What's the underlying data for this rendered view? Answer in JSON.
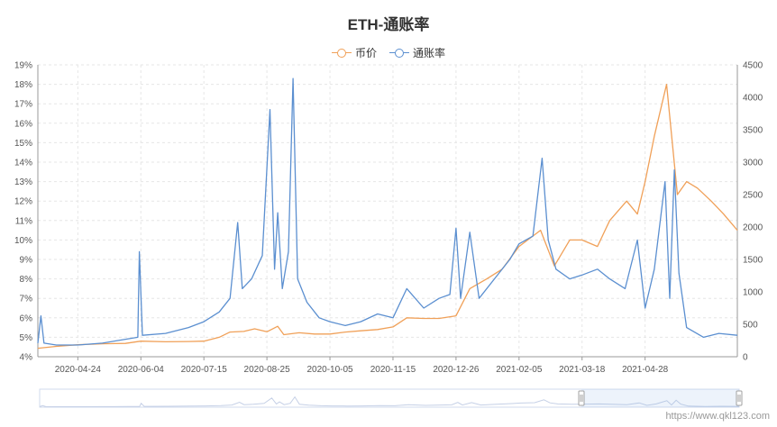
{
  "title": "ETH-通账率",
  "watermark": "https://www.qkl123.com",
  "colors": {
    "price": "#f0a058",
    "inflation": "#5b8fd0",
    "grid": "#e6e6e6",
    "axis": "#999999"
  },
  "legend": [
    {
      "label": "币价",
      "color": "#f0a058"
    },
    {
      "label": "通账率",
      "color": "#5b8fd0"
    }
  ],
  "chart_data": {
    "type": "line",
    "title": "ETH-通账率",
    "legend_position": "top-center",
    "grid": true,
    "x_ticks": [
      "2020-04-24",
      "2020-06-04",
      "2020-07-15",
      "2020-08-25",
      "2020-10-05",
      "2020-11-15",
      "2020-12-26",
      "2021-02-05",
      "2021-03-18",
      "2021-04-28"
    ],
    "x_range": [
      "2020-03-29",
      "2021-06-27"
    ],
    "y_left": {
      "unit": "%",
      "min": 4,
      "max": 19,
      "ticks": [
        "4%",
        "5%",
        "6%",
        "7%",
        "8%",
        "9%",
        "10%",
        "11%",
        "12%",
        "13%",
        "14%",
        "15%",
        "16%",
        "17%",
        "18%",
        "19%"
      ]
    },
    "y_right": {
      "min": 0,
      "max": 4500,
      "ticks": [
        "0",
        "500",
        "1000",
        "1500",
        "2000",
        "2500",
        "3000",
        "3500",
        "4000",
        "4500"
      ]
    },
    "series": [
      {
        "name": "币价",
        "axis": "right",
        "points": [
          [
            "2020-03-29",
            130
          ],
          [
            "2020-04-10",
            160
          ],
          [
            "2020-04-24",
            185
          ],
          [
            "2020-05-10",
            200
          ],
          [
            "2020-05-25",
            205
          ],
          [
            "2020-06-04",
            240
          ],
          [
            "2020-06-20",
            230
          ],
          [
            "2020-07-05",
            235
          ],
          [
            "2020-07-15",
            240
          ],
          [
            "2020-07-25",
            300
          ],
          [
            "2020-08-01",
            380
          ],
          [
            "2020-08-10",
            390
          ],
          [
            "2020-08-17",
            430
          ],
          [
            "2020-08-25",
            385
          ],
          [
            "2020-09-01",
            470
          ],
          [
            "2020-09-05",
            340
          ],
          [
            "2020-09-15",
            370
          ],
          [
            "2020-09-25",
            350
          ],
          [
            "2020-10-05",
            350
          ],
          [
            "2020-10-15",
            380
          ],
          [
            "2020-10-25",
            400
          ],
          [
            "2020-11-05",
            420
          ],
          [
            "2020-11-15",
            460
          ],
          [
            "2020-11-24",
            600
          ],
          [
            "2020-12-05",
            590
          ],
          [
            "2020-12-15",
            590
          ],
          [
            "2020-12-26",
            630
          ],
          [
            "2021-01-04",
            1050
          ],
          [
            "2021-01-15",
            1200
          ],
          [
            "2021-01-25",
            1350
          ],
          [
            "2021-02-05",
            1700
          ],
          [
            "2021-02-19",
            1950
          ],
          [
            "2021-02-28",
            1400
          ],
          [
            "2021-03-10",
            1800
          ],
          [
            "2021-03-18",
            1800
          ],
          [
            "2021-03-28",
            1700
          ],
          [
            "2021-04-05",
            2100
          ],
          [
            "2021-04-16",
            2400
          ],
          [
            "2021-04-23",
            2200
          ],
          [
            "2021-04-28",
            2700
          ],
          [
            "2021-05-04",
            3400
          ],
          [
            "2021-05-12",
            4200
          ],
          [
            "2021-05-19",
            2500
          ],
          [
            "2021-05-25",
            2700
          ],
          [
            "2021-06-01",
            2600
          ],
          [
            "2021-06-10",
            2400
          ],
          [
            "2021-06-18",
            2200
          ],
          [
            "2021-06-27",
            1950
          ]
        ]
      },
      {
        "name": "通账率",
        "axis": "left",
        "points": [
          [
            "2020-03-29",
            4.7
          ],
          [
            "2020-03-31",
            6.1
          ],
          [
            "2020-04-02",
            4.7
          ],
          [
            "2020-04-10",
            4.6
          ],
          [
            "2020-04-24",
            4.6
          ],
          [
            "2020-05-10",
            4.7
          ],
          [
            "2020-05-25",
            4.9
          ],
          [
            "2020-06-02",
            5.0
          ],
          [
            "2020-06-03",
            9.4
          ],
          [
            "2020-06-05",
            5.1
          ],
          [
            "2020-06-20",
            5.2
          ],
          [
            "2020-07-05",
            5.5
          ],
          [
            "2020-07-15",
            5.8
          ],
          [
            "2020-07-25",
            6.3
          ],
          [
            "2020-08-01",
            7.0
          ],
          [
            "2020-08-06",
            10.9
          ],
          [
            "2020-08-09",
            7.5
          ],
          [
            "2020-08-15",
            8.0
          ],
          [
            "2020-08-22",
            9.2
          ],
          [
            "2020-08-27",
            16.7
          ],
          [
            "2020-08-30",
            8.5
          ],
          [
            "2020-09-01",
            11.4
          ],
          [
            "2020-09-04",
            7.5
          ],
          [
            "2020-09-08",
            9.4
          ],
          [
            "2020-09-11",
            18.3
          ],
          [
            "2020-09-14",
            8.0
          ],
          [
            "2020-09-20",
            6.8
          ],
          [
            "2020-09-28",
            6.0
          ],
          [
            "2020-10-05",
            5.8
          ],
          [
            "2020-10-15",
            5.6
          ],
          [
            "2020-10-25",
            5.8
          ],
          [
            "2020-11-05",
            6.2
          ],
          [
            "2020-11-15",
            6.0
          ],
          [
            "2020-11-24",
            7.5
          ],
          [
            "2020-12-05",
            6.5
          ],
          [
            "2020-12-15",
            7.0
          ],
          [
            "2020-12-22",
            7.2
          ],
          [
            "2020-12-26",
            10.6
          ],
          [
            "2020-12-29",
            7.0
          ],
          [
            "2021-01-04",
            10.4
          ],
          [
            "2021-01-10",
            7.0
          ],
          [
            "2021-01-20",
            8.0
          ],
          [
            "2021-01-30",
            9.0
          ],
          [
            "2021-02-05",
            9.8
          ],
          [
            "2021-02-14",
            10.2
          ],
          [
            "2021-02-20",
            14.2
          ],
          [
            "2021-02-24",
            10.0
          ],
          [
            "2021-03-01",
            8.5
          ],
          [
            "2021-03-10",
            8.0
          ],
          [
            "2021-03-18",
            8.2
          ],
          [
            "2021-03-28",
            8.5
          ],
          [
            "2021-04-05",
            8.0
          ],
          [
            "2021-04-15",
            7.5
          ],
          [
            "2021-04-23",
            10.0
          ],
          [
            "2021-04-28",
            6.5
          ],
          [
            "2021-05-04",
            8.5
          ],
          [
            "2021-05-11",
            13.0
          ],
          [
            "2021-05-14",
            7.0
          ],
          [
            "2021-05-17",
            13.6
          ],
          [
            "2021-05-20",
            8.3
          ],
          [
            "2021-05-25",
            5.5
          ],
          [
            "2021-06-05",
            5.0
          ],
          [
            "2021-06-15",
            5.2
          ],
          [
            "2021-06-27",
            5.1
          ]
        ]
      }
    ]
  }
}
